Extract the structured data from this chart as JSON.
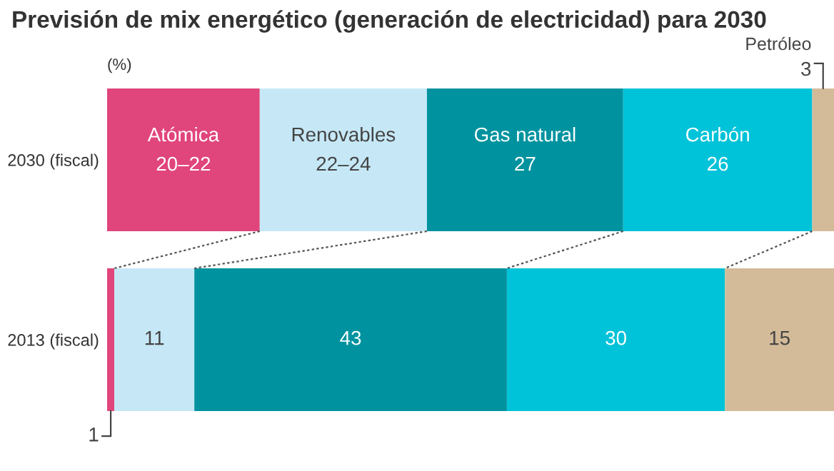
{
  "chart_data": {
    "type": "bar",
    "orientation": "horizontal",
    "stacked": true,
    "title": "Previsión de mix energético (generación de electricidad) para 2030",
    "xlabel": "(%)",
    "categories": [
      "2030 (fiscal)",
      "2013 (fiscal)"
    ],
    "xlim": [
      0,
      100
    ],
    "series": [
      {
        "name": "Atómica",
        "color": "#e0457b",
        "values": [
          21,
          1
        ],
        "value_labels": [
          "20–22",
          "1"
        ]
      },
      {
        "name": "Renovables",
        "color": "#c6e8f6",
        "values": [
          23,
          11
        ],
        "value_labels": [
          "22–24",
          "11"
        ]
      },
      {
        "name": "Gas natural",
        "color": "#00939f",
        "values": [
          27,
          43
        ],
        "value_labels": [
          "27",
          "43"
        ]
      },
      {
        "name": "Carbón",
        "color": "#00c2d8",
        "values": [
          26,
          30
        ],
        "value_labels": [
          "26",
          "30"
        ]
      },
      {
        "name": "Petróleo",
        "color": "#d3bb99",
        "values": [
          3,
          15
        ],
        "value_labels": [
          "3",
          "15"
        ]
      }
    ],
    "grid": false,
    "legend": false
  }
}
